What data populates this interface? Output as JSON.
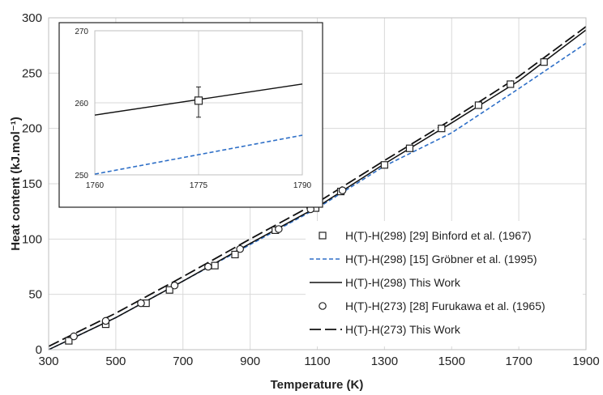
{
  "chart_data": {
    "type": "line",
    "title": "",
    "xlabel": "Temperature (K)",
    "ylabel": "Heat content (kJ.mol⁻¹)",
    "xlim": [
      300,
      1900
    ],
    "ylim": [
      0,
      300
    ],
    "x_ticks": [
      300,
      500,
      700,
      900,
      1100,
      1300,
      1500,
      1700,
      1900
    ],
    "y_ticks": [
      0,
      50,
      100,
      150,
      200,
      250,
      300
    ],
    "grid": true,
    "legend_position": "bottom-right",
    "series": [
      {
        "name": "H(T)-H(298) [29] Binford et al. (1967)",
        "style": "square-markers",
        "color": "#222222",
        "points": [
          [
            360,
            8
          ],
          [
            470,
            23
          ],
          [
            590,
            42
          ],
          [
            660,
            54
          ],
          [
            795,
            76
          ],
          [
            855,
            86
          ],
          [
            975,
            108
          ],
          [
            1095,
            128
          ],
          [
            1170,
            143
          ],
          [
            1300,
            167
          ],
          [
            1375,
            182
          ],
          [
            1470,
            200
          ],
          [
            1580,
            221
          ],
          [
            1675,
            240
          ],
          [
            1775,
            260
          ]
        ]
      },
      {
        "name": "H(T)-H(298) [15] Gröbner et al. (1995)",
        "style": "dashed",
        "color": "#2e6fc7",
        "points": [
          [
            300,
            0
          ],
          [
            500,
            29
          ],
          [
            700,
            62
          ],
          [
            900,
            95
          ],
          [
            1100,
            128
          ],
          [
            1300,
            166
          ],
          [
            1500,
            196
          ],
          [
            1700,
            236
          ],
          [
            1900,
            277
          ]
        ]
      },
      {
        "name": "H(T)-H(298) This Work",
        "style": "solid",
        "color": "#111111",
        "points": [
          [
            300,
            0
          ],
          [
            500,
            29
          ],
          [
            700,
            62
          ],
          [
            900,
            96
          ],
          [
            1100,
            129
          ],
          [
            1300,
            168
          ],
          [
            1500,
            205
          ],
          [
            1700,
            243
          ],
          [
            1900,
            289
          ]
        ]
      },
      {
        "name": "H(T)-H(273) [28] Furukawa et al. (1965)",
        "style": "circle-markers",
        "color": "#222222",
        "points": [
          [
            375,
            12
          ],
          [
            470,
            26
          ],
          [
            575,
            42
          ],
          [
            675,
            58
          ],
          [
            775,
            75
          ],
          [
            870,
            91
          ],
          [
            985,
            109
          ],
          [
            1080,
            127
          ],
          [
            1175,
            144
          ]
        ]
      },
      {
        "name": "H(T)-H(273) This Work",
        "style": "long-dash",
        "color": "#111111",
        "points": [
          [
            300,
            3
          ],
          [
            500,
            33
          ],
          [
            700,
            66
          ],
          [
            900,
            100
          ],
          [
            1100,
            133
          ],
          [
            1300,
            171
          ],
          [
            1500,
            208
          ],
          [
            1700,
            247
          ],
          [
            1900,
            292
          ]
        ]
      }
    ],
    "inset": {
      "xlim": [
        1760,
        1790
      ],
      "ylim": [
        250,
        270
      ],
      "x_ticks": [
        1760,
        1775,
        1790
      ],
      "y_ticks": [
        250,
        260,
        270
      ],
      "solid_line": [
        [
          1760,
          258.3
        ],
        [
          1790,
          262.6
        ]
      ],
      "dashed_line": [
        [
          1760,
          250.1
        ],
        [
          1790,
          255.5
        ]
      ],
      "point": {
        "x": 1775,
        "y": 260.3,
        "err_low": 258.0,
        "err_high": 262.2
      }
    }
  }
}
